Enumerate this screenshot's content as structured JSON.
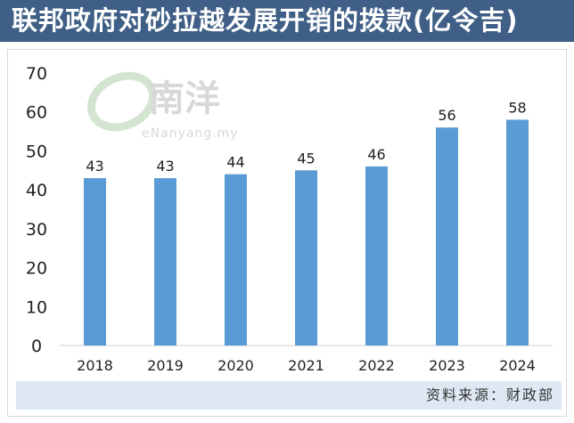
{
  "header": {
    "title": "联邦政府对砂拉越发展开销的拨款(亿令吉)"
  },
  "watermark": {
    "brand": "e南洋",
    "url": "eNanyang.my"
  },
  "source": {
    "text": "资料来源：财政部"
  },
  "colors": {
    "header_bg": "#3f5f86",
    "bar": "#5b9bd5",
    "source_bg": "#dde8f3"
  },
  "chart_data": {
    "type": "bar",
    "title": "联邦政府对砂拉越发展开销的拨款(亿令吉)",
    "xlabel": "",
    "ylabel": "",
    "categories": [
      "2018",
      "2019",
      "2020",
      "2021",
      "2022",
      "2023",
      "2024"
    ],
    "values": [
      43,
      43,
      44,
      45,
      46,
      56,
      58
    ],
    "ylim": [
      0,
      70
    ],
    "yticks": [
      0,
      10,
      20,
      30,
      40,
      50,
      60,
      70
    ],
    "grid": false,
    "legend": "none"
  }
}
